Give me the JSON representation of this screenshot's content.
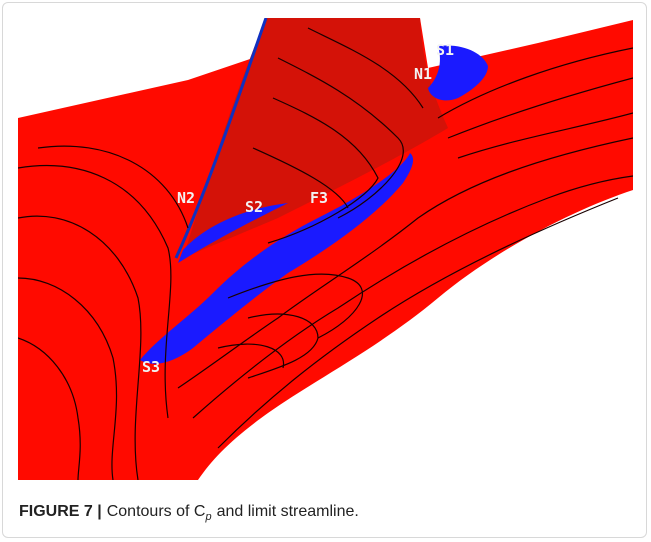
{
  "figure": {
    "labels": [
      "S1",
      "N1",
      "N2",
      "S2",
      "F3",
      "S3"
    ]
  },
  "caption": {
    "label": "FIGURE 7 |",
    "text_before": "Contours of C",
    "subscript": "p",
    "text_after": "and limit streamline."
  }
}
